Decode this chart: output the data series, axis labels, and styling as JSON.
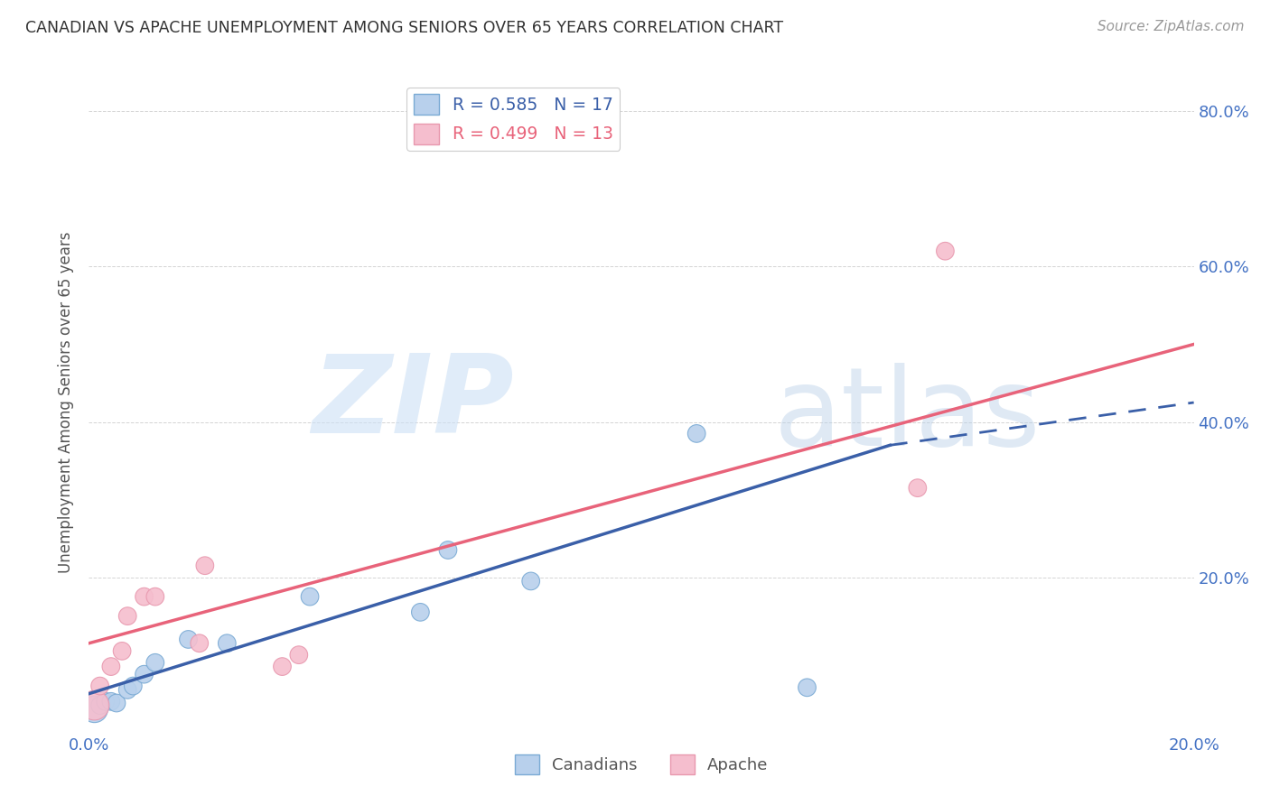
{
  "title": "CANADIAN VS APACHE UNEMPLOYMENT AMONG SENIORS OVER 65 YEARS CORRELATION CHART",
  "source": "Source: ZipAtlas.com",
  "ylabel": "Unemployment Among Seniors over 65 years",
  "xlim": [
    0.0,
    0.2
  ],
  "ylim": [
    0.0,
    0.85
  ],
  "xticks": [
    0.0,
    0.04,
    0.08,
    0.12,
    0.16,
    0.2
  ],
  "yticks": [
    0.0,
    0.2,
    0.4,
    0.6,
    0.8
  ],
  "canadian_R": 0.585,
  "canadian_N": 17,
  "apache_R": 0.499,
  "apache_N": 13,
  "canadian_color": "#b8d0ec",
  "apache_color": "#f5bece",
  "canadian_line_color": "#3a5fa8",
  "apache_line_color": "#e8637a",
  "watermark_zip": "ZIP",
  "watermark_atlas": "atlas",
  "canadian_x": [
    0.001,
    0.002,
    0.003,
    0.004,
    0.005,
    0.007,
    0.008,
    0.01,
    0.012,
    0.018,
    0.025,
    0.04,
    0.06,
    0.065,
    0.08,
    0.11,
    0.13
  ],
  "canadian_y": [
    0.03,
    0.035,
    0.04,
    0.04,
    0.038,
    0.055,
    0.06,
    0.075,
    0.09,
    0.12,
    0.115,
    0.175,
    0.155,
    0.235,
    0.195,
    0.385,
    0.058
  ],
  "canadian_sizes": [
    450,
    200,
    200,
    200,
    200,
    200,
    200,
    200,
    200,
    200,
    200,
    200,
    200,
    200,
    200,
    200,
    200
  ],
  "apache_x": [
    0.001,
    0.002,
    0.004,
    0.006,
    0.007,
    0.01,
    0.012,
    0.02,
    0.021,
    0.035,
    0.038,
    0.15,
    0.155
  ],
  "apache_y": [
    0.035,
    0.06,
    0.085,
    0.105,
    0.15,
    0.175,
    0.175,
    0.115,
    0.215,
    0.085,
    0.1,
    0.315,
    0.62
  ],
  "apache_sizes": [
    550,
    200,
    200,
    200,
    200,
    200,
    200,
    200,
    200,
    200,
    200,
    200,
    200
  ],
  "ca_line_x0": 0.0,
  "ca_line_y0": 0.05,
  "ca_line_x1": 0.145,
  "ca_line_y1": 0.37,
  "ca_line_solid_end": 0.145,
  "ca_line_x2": 0.2,
  "ca_line_y2": 0.425,
  "ap_line_x0": 0.0,
  "ap_line_y0": 0.115,
  "ap_line_x1": 0.2,
  "ap_line_y1": 0.5
}
